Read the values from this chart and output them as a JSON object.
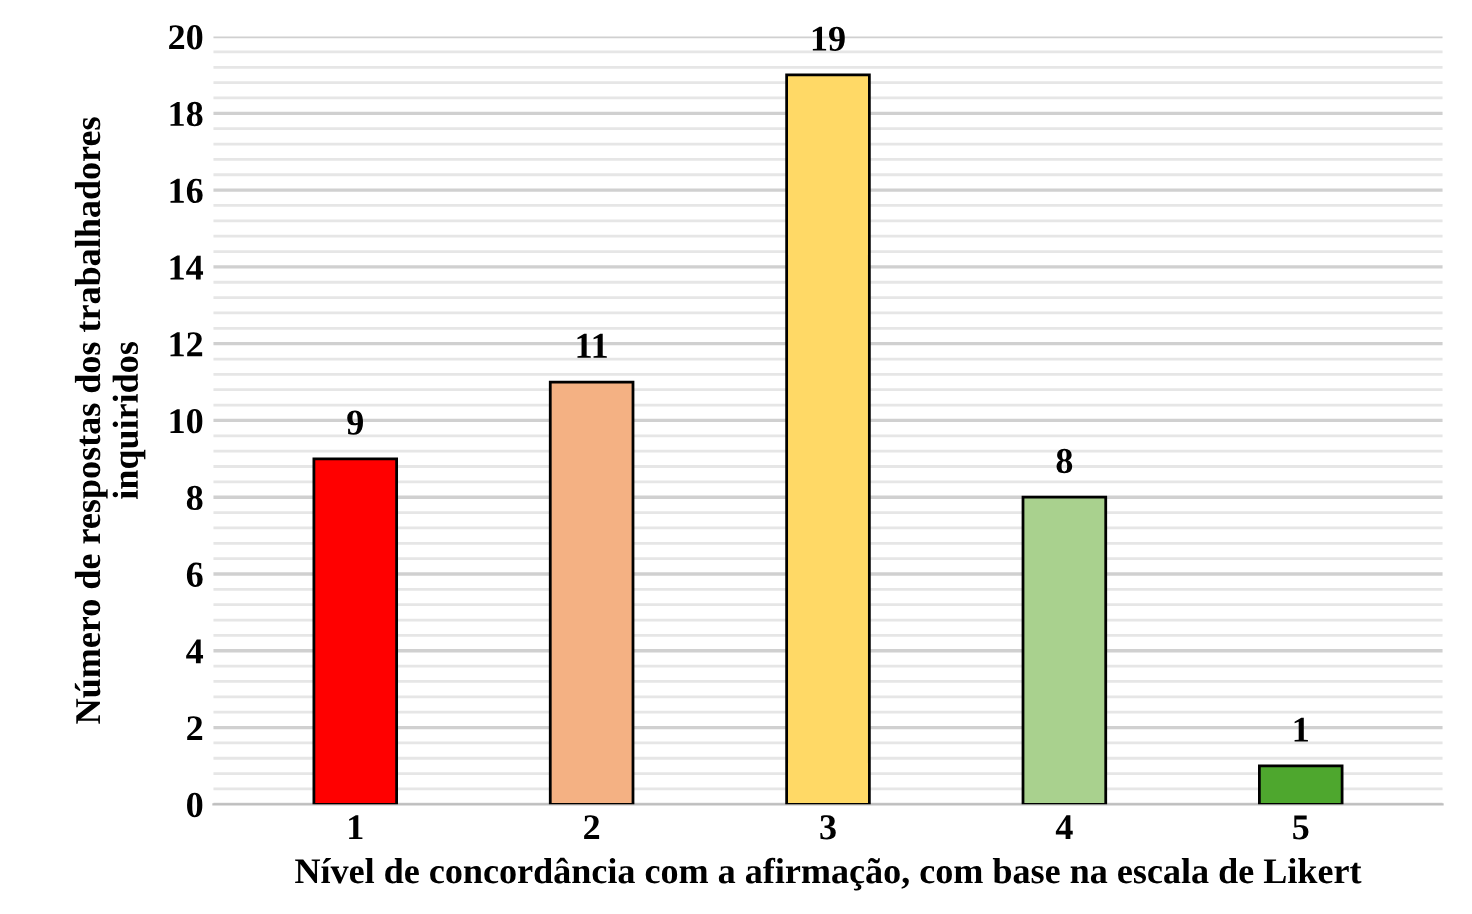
{
  "chart_data": {
    "type": "bar",
    "xlabel": "Nível de concordância com a afirmação, com base na escala de Likert",
    "ylabel": "Número de respostas dos trabalhadores\ninquiridos",
    "categories": [
      "1",
      "2",
      "3",
      "4",
      "5"
    ],
    "values": [
      9,
      11,
      19,
      8,
      1
    ],
    "colors": [
      "#ff0000",
      "#f4b183",
      "#ffd966",
      "#a9d18e",
      "#4ea72e"
    ],
    "ylim": [
      0,
      20
    ],
    "yticks": [
      0,
      2,
      4,
      6,
      8,
      10,
      12,
      14,
      16,
      18,
      20
    ],
    "grid": "y",
    "data_labels": true
  }
}
